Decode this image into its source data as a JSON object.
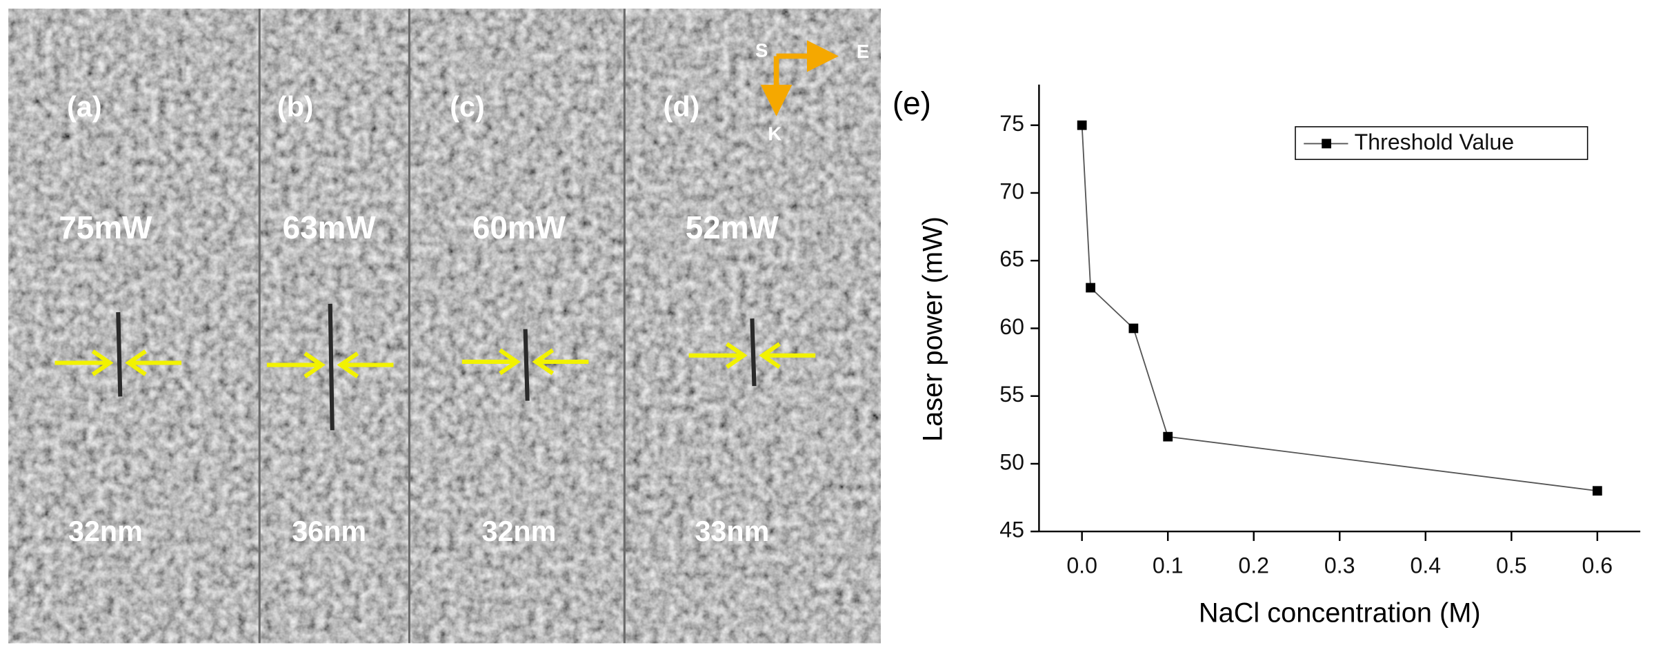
{
  "panels": [
    {
      "label": "(a)",
      "power": "75mW",
      "width": "32nm"
    },
    {
      "label": "(b)",
      "power": "63mW",
      "width": "36nm"
    },
    {
      "label": "(c)",
      "power": "60mW",
      "width": "32nm"
    },
    {
      "label": "(d)",
      "power": "52mW",
      "width": "33nm"
    }
  ],
  "compass": {
    "s": "S",
    "e": "E",
    "k": "K"
  },
  "chart_data": {
    "type": "line",
    "panel_label": "(e)",
    "x_label": "NaCl concentration (M)",
    "y_label": "Laser power (mW)",
    "x": [
      0,
      0.01,
      0.06,
      0.1,
      0.6
    ],
    "series": [
      {
        "name": "Threshold Value",
        "color": "#000000",
        "values": [
          75,
          63,
          60,
          52,
          48
        ]
      }
    ],
    "xlim": [
      -0.05,
      0.65
    ],
    "xticks": [
      {
        "value": 0,
        "label": "0.0"
      },
      0.1,
      0.2,
      0.3,
      0.4,
      0.5,
      0.6
    ],
    "ylim": [
      45,
      78
    ],
    "yticks": [
      45,
      50,
      55,
      60,
      65,
      70,
      75
    ],
    "legend": "upper right",
    "grid": false
  }
}
